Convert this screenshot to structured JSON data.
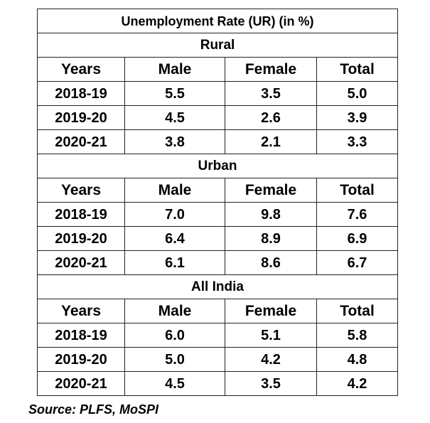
{
  "title": "Unemployment Rate (UR) (in %)",
  "columns": [
    "Years",
    "Male",
    "Female",
    "Total"
  ],
  "sections": [
    {
      "name": "Rural",
      "rows": [
        [
          "2018-19",
          "5.5",
          "3.5",
          "5.0"
        ],
        [
          "2019-20",
          "4.5",
          "2.6",
          "3.9"
        ],
        [
          "2020-21",
          "3.8",
          "2.1",
          "3.3"
        ]
      ]
    },
    {
      "name": "Urban",
      "rows": [
        [
          "2018-19",
          "7.0",
          "9.8",
          "7.6"
        ],
        [
          "2019-20",
          "6.4",
          "8.9",
          "6.9"
        ],
        [
          "2020-21",
          "6.1",
          "8.6",
          "6.7"
        ]
      ]
    },
    {
      "name": "All India",
      "rows": [
        [
          "2018-19",
          "6.0",
          "5.1",
          "5.8"
        ],
        [
          "2019-20",
          "5.0",
          "4.2",
          "4.8"
        ],
        [
          "2020-21",
          "4.5",
          "3.5",
          "4.2"
        ]
      ]
    }
  ],
  "source": "Source: PLFS, MoSPI"
}
